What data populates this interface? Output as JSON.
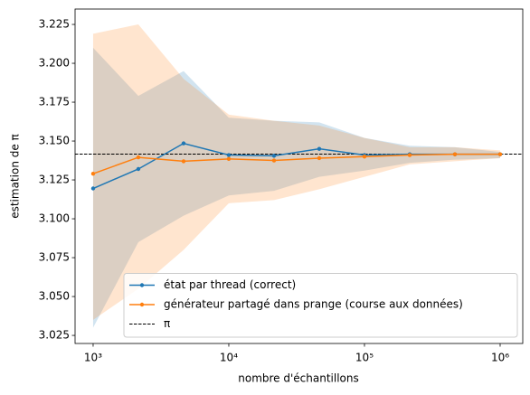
{
  "chart_data": {
    "type": "line",
    "xlabel": "nombre d'échantillons",
    "ylabel": "estimation de π",
    "xscale": "log",
    "x": [
      1000,
      2154,
      4642,
      10000,
      21544,
      46416,
      100000,
      215443,
      464159,
      1000000
    ],
    "xlim": [
      736,
      1468000
    ],
    "xticks": [
      {
        "value": 1000,
        "label": "10³"
      },
      {
        "value": 10000,
        "label": "10⁴"
      },
      {
        "value": 100000,
        "label": "10⁵"
      },
      {
        "value": 1000000,
        "label": "10⁶"
      }
    ],
    "ylim": [
      3.0198,
      3.2349
    ],
    "yticks": [
      3.025,
      {
        "value": 3.05,
        "label": "3.050"
      },
      3.075,
      {
        "value": 3.1,
        "label": "3.100"
      },
      3.125,
      {
        "value": 3.15,
        "label": "3.150"
      },
      3.175,
      {
        "value": 3.2,
        "label": "3.200"
      },
      3.225
    ],
    "legend": "lower right",
    "series": [
      {
        "name": "état par thread (correct)",
        "color": "#1f77b4",
        "values": [
          3.1195,
          3.132,
          3.1485,
          3.141,
          3.1405,
          3.145,
          3.141,
          3.1415,
          3.1415,
          3.1415
        ],
        "upper": [
          3.21,
          3.179,
          3.195,
          3.165,
          3.163,
          3.162,
          3.152,
          3.147,
          3.146,
          3.143
        ],
        "lower": [
          3.03,
          3.085,
          3.102,
          3.115,
          3.118,
          3.127,
          3.131,
          3.136,
          3.138,
          3.139
        ]
      },
      {
        "name": "générateur partagé dans prange (course aux données)",
        "color": "#ff7f0e",
        "values": [
          3.129,
          3.1395,
          3.137,
          3.1385,
          3.1375,
          3.139,
          3.14,
          3.141,
          3.1415,
          3.1415
        ],
        "upper": [
          3.219,
          3.225,
          3.19,
          3.167,
          3.163,
          3.16,
          3.152,
          3.146,
          3.146,
          3.144
        ],
        "lower": [
          3.035,
          3.055,
          3.08,
          3.11,
          3.112,
          3.119,
          3.127,
          3.135,
          3.137,
          3.139
        ]
      }
    ],
    "hlines": [
      {
        "name": "π",
        "value": 3.14159,
        "color": "#000000"
      }
    ]
  }
}
